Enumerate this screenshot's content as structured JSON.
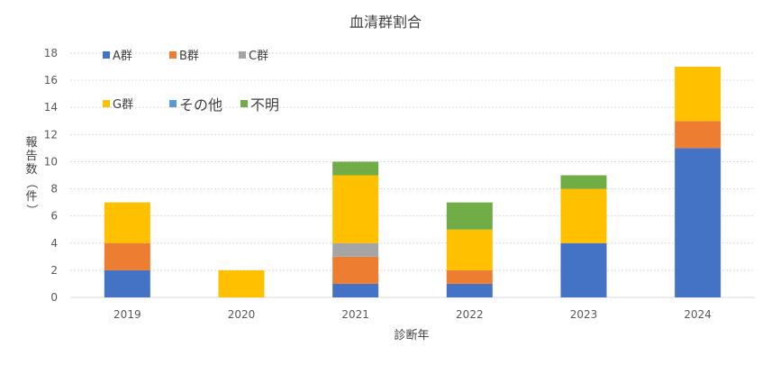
{
  "chart_data": {
    "type": "bar",
    "stacked": true,
    "title": "血清群割合",
    "xlabel": "診断年",
    "ylabel": "報告数（件）",
    "ylabel_chars": [
      "報",
      "告",
      "数",
      "（",
      "件",
      "）"
    ],
    "categories": [
      "2019",
      "2020",
      "2021",
      "2022",
      "2023",
      "2024"
    ],
    "ylim": [
      0,
      18
    ],
    "yticks": [
      "0",
      "2",
      "4",
      "6",
      "8",
      "10",
      "12",
      "14",
      "16",
      "18"
    ],
    "grid": true,
    "legend_position": "top-left",
    "series": [
      {
        "name": "A群",
        "color": "#4472c4",
        "values": [
          2,
          0,
          1,
          1,
          4,
          11
        ]
      },
      {
        "name": "B群",
        "color": "#ed7d31",
        "values": [
          2,
          0,
          2,
          1,
          0,
          2
        ]
      },
      {
        "name": "C群",
        "color": "#a5a5a5",
        "values": [
          0,
          0,
          1,
          0,
          0,
          0
        ]
      },
      {
        "name": "G群",
        "color": "#ffc000",
        "values": [
          3,
          2,
          5,
          3,
          4,
          4
        ]
      },
      {
        "name": "その他",
        "color": "#5b9bd5",
        "values": [
          0,
          0,
          0,
          0,
          0,
          0
        ]
      },
      {
        "name": "不明",
        "color": "#70ad47",
        "values": [
          0,
          0,
          1,
          2,
          1,
          0
        ]
      }
    ]
  }
}
